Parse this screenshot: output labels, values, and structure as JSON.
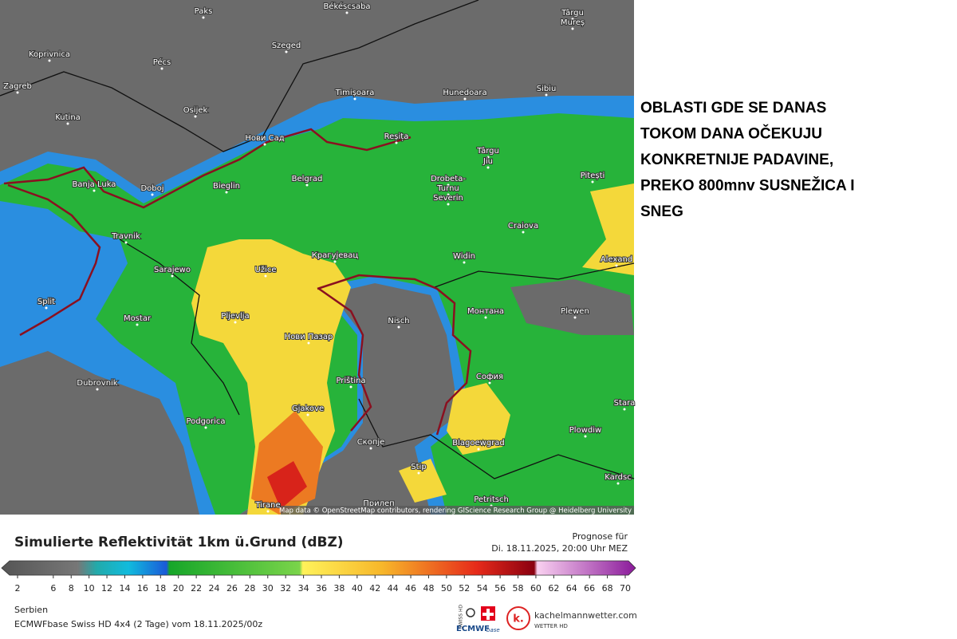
{
  "map": {
    "cities": [
      "Paks",
      "Békéscsaba",
      "Târgu",
      "Mureș",
      "Koprivnica",
      "Pécs",
      "Szeged",
      "Zagreb",
      "Timișoara",
      "Hunedoara",
      "Sibiu",
      "Osijek",
      "Kutina",
      "Нови Сад",
      "Reșița",
      "Târgu",
      "Jiu",
      "Pitești",
      "Banja Luka",
      "Doboj",
      "Bieglin",
      "Belgrad",
      "Drobeta-",
      "Turnu",
      "Severin",
      "Craiova",
      "Travnik",
      "Sarajewo",
      "Užice",
      "Крагујевац",
      "Widin",
      "Alexand",
      "Split",
      "Pljevlja",
      "Mostar",
      "Nisch",
      "Монтана",
      "Plewen",
      "Нови Пазар",
      "Dubrovnik",
      "Priština",
      "София",
      "Podgorica",
      "Gjakove",
      "Stara",
      "Plowdiw",
      "Скопје",
      "Blagoewgrad",
      "Stip",
      "Kardsc",
      "Tirane",
      "Прилеп",
      "Petritsch"
    ],
    "attribution": "Map data © OpenStreetMap contributors, rendering GIScience Research Group @ Heidelberg University"
  },
  "annotation": [
    "OBLASTI GDE SE DANAS",
    "TOKOM DANA OČEKUJU",
    "KONKRETNIJE PADAVINE,",
    "PREKO 800mnv SUSNEŽICA I",
    "SNEG"
  ],
  "legend": {
    "title": "Simulierte Reflektivität 1km ü.Grund (dBZ)",
    "ticks": [
      2,
      6,
      8,
      10,
      12,
      14,
      16,
      18,
      20,
      22,
      24,
      26,
      28,
      30,
      32,
      34,
      36,
      38,
      40,
      42,
      44,
      46,
      48,
      50,
      52,
      54,
      56,
      58,
      60,
      62,
      64,
      66,
      68,
      70
    ]
  },
  "forecast": {
    "label": "Prognose für",
    "time": "Di. 18.11.2025, 20:00 Uhr MEZ"
  },
  "footer": {
    "region": "Serbien",
    "model": "ECMWFbase Swiss HD 4x4 (2 Tage) vom 18.11.2025/00z"
  },
  "logos": {
    "swiss": "SWISS HD",
    "ecmwf": "ECMWF",
    "ecmwf_sub": "base",
    "k": "k.",
    "site": "kachelmannwetter.com",
    "site_sub": "WETTER HD"
  }
}
